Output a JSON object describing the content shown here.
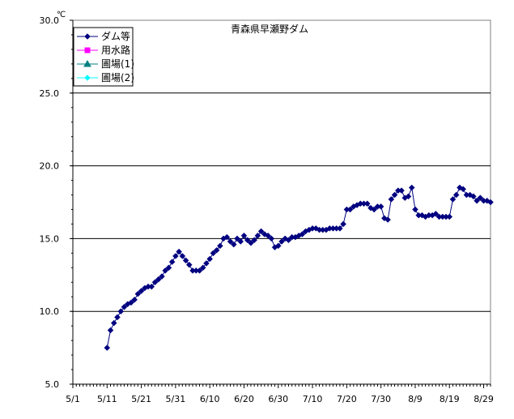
{
  "chart_data": {
    "type": "line",
    "title": "青森県早瀬野ダム",
    "ylabel": "",
    "xlabel": "",
    "y_unit": "℃",
    "ylim": [
      5,
      30
    ],
    "y_ticks": [
      "5.0",
      "10.0",
      "15.0",
      "20.0",
      "25.0",
      "30.0"
    ],
    "x_ticks": [
      "5/1",
      "5/11",
      "5/21",
      "5/31",
      "6/10",
      "6/20",
      "6/30",
      "7/10",
      "7/20",
      "7/30",
      "8/9",
      "8/19",
      "8/29"
    ],
    "x_range_days": [
      0,
      122
    ],
    "grid": "horizontal",
    "legend_position": "top-left",
    "series": [
      {
        "name": "ダム等",
        "color": "#000080",
        "marker": "diamond",
        "x": [
          10,
          11,
          12,
          13,
          14,
          15,
          16,
          17,
          18,
          19,
          20,
          21,
          22,
          23,
          24,
          25,
          26,
          27,
          28,
          29,
          30,
          31,
          32,
          33,
          34,
          35,
          36,
          37,
          38,
          39,
          40,
          41,
          42,
          43,
          44,
          45,
          46,
          47,
          48,
          49,
          50,
          51,
          52,
          53,
          54,
          55,
          56,
          57,
          58,
          59,
          60,
          61,
          62,
          63,
          64,
          65,
          66,
          67,
          68,
          69,
          70,
          71,
          72,
          73,
          74,
          75,
          76,
          77,
          78,
          79,
          80,
          81,
          82,
          83,
          84,
          85,
          86,
          87,
          88,
          89,
          90,
          91,
          92,
          93,
          94,
          95,
          96,
          97,
          98,
          99,
          100,
          101,
          102,
          103,
          104,
          105,
          106,
          107,
          108,
          109,
          110,
          111,
          112,
          113,
          114,
          115,
          116,
          117,
          118,
          119,
          120,
          121,
          122
        ],
        "y": [
          7.5,
          8.7,
          9.2,
          9.6,
          10.0,
          10.3,
          10.5,
          10.6,
          10.8,
          11.2,
          11.4,
          11.6,
          11.7,
          11.7,
          12.0,
          12.2,
          12.4,
          12.8,
          13.0,
          13.4,
          13.8,
          14.1,
          13.8,
          13.5,
          13.2,
          12.8,
          12.8,
          12.8,
          13.0,
          13.3,
          13.6,
          14.0,
          14.2,
          14.5,
          15.0,
          15.1,
          14.8,
          14.6,
          15.0,
          14.8,
          15.2,
          14.9,
          14.7,
          14.9,
          15.2,
          15.5,
          15.3,
          15.2,
          15.0,
          14.4,
          14.5,
          14.8,
          15.0,
          14.9,
          15.1,
          15.1,
          15.2,
          15.3,
          15.5,
          15.6,
          15.7,
          15.7,
          15.6,
          15.6,
          15.6,
          15.7,
          15.7,
          15.7,
          15.7,
          16.0,
          17.0,
          17.0,
          17.2,
          17.3,
          17.4,
          17.4,
          17.4,
          17.1,
          17.0,
          17.2,
          17.2,
          16.4,
          16.3,
          17.7,
          18.0,
          18.3,
          18.3,
          17.8,
          17.9,
          18.5,
          17.0,
          16.6,
          16.6,
          16.5,
          16.6,
          16.6,
          16.7,
          16.5,
          16.5,
          16.5,
          16.5,
          17.7,
          18.0,
          18.5,
          18.4,
          18.0,
          18.0,
          17.9,
          17.6,
          17.8,
          17.6,
          17.6,
          17.5
        ]
      },
      {
        "name": "用水路",
        "color": "#ff00ff",
        "marker": "square",
        "x": [],
        "y": []
      },
      {
        "name": "圃場(1)",
        "color": "#008080",
        "marker": "triangle",
        "x": [],
        "y": []
      },
      {
        "name": "圃場(2)",
        "color": "#00ffff",
        "marker": "diamond",
        "x": [],
        "y": []
      }
    ]
  }
}
